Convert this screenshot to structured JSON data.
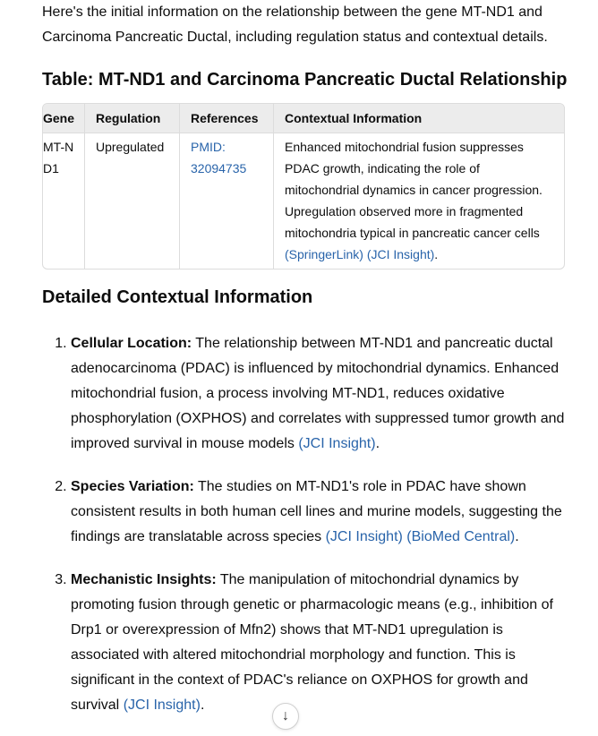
{
  "intro": "Here's the initial information on the relationship between the gene MT-ND1 and Carcinoma Pancreatic Ductal, including regulation status and contextual details.",
  "table_title": "Table: MT-ND1 and Carcinoma Pancreatic Ductal Relationship",
  "table": {
    "headers": [
      "Gene",
      "Regulation",
      "References",
      "Contextual Information"
    ],
    "rows": [
      {
        "gene": "MT-ND1",
        "regulation": "Upregulated",
        "reference": "PMID: 32094735",
        "context": "Enhanced mitochondrial fusion suppresses PDAC growth, indicating the role of mitochondrial dynamics in cancer progression. Upregulation observed more in fragmented mitochondria typical in pancreatic cancer cells ",
        "link1": "(SpringerLink)",
        "link2": "(JCI Insight)",
        "end": "."
      }
    ]
  },
  "details_title": "Detailed Contextual Information",
  "items": [
    {
      "label": "Cellular Location:",
      "text": " The relationship between MT-ND1 and pancreatic ductal adenocarcinoma (PDAC) is influenced by mitochondrial dynamics. Enhanced mitochondrial fusion, a process involving MT-ND1, reduces oxidative phosphorylation (OXPHOS) and correlates with suppressed tumor growth and improved survival in mouse models ",
      "link1": "(JCI Insight)",
      "link2": "",
      "end": "."
    },
    {
      "label": "Species Variation:",
      "text": " The studies on MT-ND1's role in PDAC have shown consistent results in both human cell lines and murine models, suggesting the findings are translatable across species ",
      "link1": "(JCI Insight)",
      "link2": "(BioMed Central)",
      "end": "."
    },
    {
      "label": "Mechanistic Insights:",
      "text": " The manipulation of mitochondrial dynamics by promoting fusion through genetic or pharmacologic means (e.g., inhibition of Drp1 or overexpression of Mfn2) shows that MT-ND1 upregulation is associated with altered mitochondrial morphology and function. This is significant in the context of PDAC's reliance on OXPHOS for growth and survival ",
      "link1": "(JCI Insight)",
      "link2": "",
      "end": "."
    }
  ],
  "scroll_icon": "arrow-down-icon",
  "colors": {
    "link": "#2964aa",
    "header_bg": "#ececec"
  }
}
